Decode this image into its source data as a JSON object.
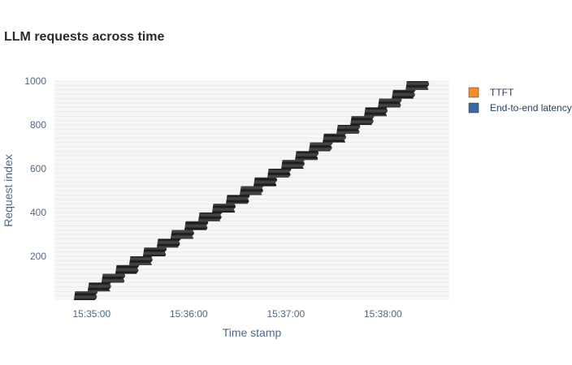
{
  "chart_data": {
    "type": "bar",
    "orientation": "horizontal",
    "title": "LLM requests across time",
    "xlabel": "Time stamp",
    "ylabel": "Request index",
    "x_ticks": [
      "15:35:00",
      "15:36:00",
      "15:37:00",
      "15:38:00"
    ],
    "y_ticks": [
      200,
      400,
      600,
      800,
      1000
    ],
    "xlim": [
      "15:34:37",
      "15:38:41"
    ],
    "ylim": [
      0,
      1000
    ],
    "grid": true,
    "legend_position": "top-right",
    "series": [
      {
        "name": "TTFT",
        "color": "#f28e2b"
      },
      {
        "name": "End-to-end latency",
        "color": "#3b6aa0"
      }
    ],
    "bar_color": "#1c1c1c",
    "requests": {
      "count": 1000,
      "first_start": "15:34:49",
      "last_start": "15:38:14",
      "batch_size": 40,
      "batch_interval_s": 8.2,
      "latency_s": 14
    }
  }
}
